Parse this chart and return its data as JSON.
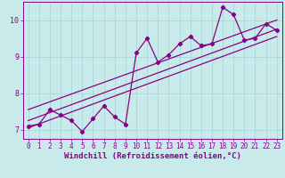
{
  "xlabel": "Windchill (Refroidissement éolien,°C)",
  "bg_color": "#c8eaea",
  "line_color": "#880088",
  "xlim": [
    -0.5,
    23.5
  ],
  "ylim": [
    6.75,
    10.5
  ],
  "yticks": [
    7,
    8,
    9,
    10
  ],
  "xticks": [
    0,
    1,
    2,
    3,
    4,
    5,
    6,
    7,
    8,
    9,
    10,
    11,
    12,
    13,
    14,
    15,
    16,
    17,
    18,
    19,
    20,
    21,
    22,
    23
  ],
  "data_x": [
    0,
    1,
    2,
    3,
    4,
    5,
    6,
    7,
    8,
    9,
    10,
    11,
    12,
    13,
    14,
    15,
    16,
    17,
    18,
    19,
    20,
    21,
    22,
    23
  ],
  "data_y": [
    7.1,
    7.15,
    7.55,
    7.4,
    7.25,
    6.95,
    7.3,
    7.65,
    7.35,
    7.15,
    9.1,
    9.5,
    8.85,
    9.05,
    9.35,
    9.55,
    9.3,
    9.35,
    10.35,
    10.15,
    9.45,
    9.5,
    9.9,
    9.72
  ],
  "trend1_x": [
    0,
    23
  ],
  "trend1_y": [
    7.05,
    9.55
  ],
  "trend2_x": [
    0,
    23
  ],
  "trend2_y": [
    7.55,
    10.0
  ],
  "trend3_x": [
    0,
    23
  ],
  "trend3_y": [
    7.25,
    9.75
  ],
  "grid_color": "#a8d8d8",
  "tick_fontsize": 5.5,
  "label_fontsize": 6.5
}
